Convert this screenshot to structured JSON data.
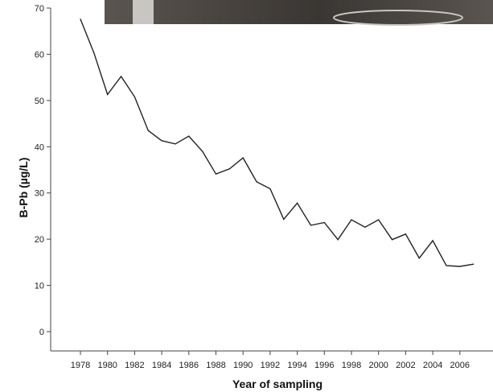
{
  "colors": {
    "line": "#222222",
    "axis": "#444444",
    "photo_dark": "#3a3633",
    "photo_mid": "#5a5550",
    "photo_light": "#c8c6c2"
  },
  "chart_data": {
    "type": "line",
    "xlabel": "Year of sampling",
    "ylabel": "B-Pb (µg/L)",
    "ylim": [
      0,
      70
    ],
    "xlim": [
      1977,
      2008
    ],
    "grid": false,
    "x_ticks": [
      1978,
      1980,
      1982,
      1984,
      1986,
      1988,
      1990,
      1992,
      1994,
      1996,
      1998,
      2000,
      2002,
      2004,
      2006
    ],
    "x_tick_labels": [
      "1978",
      "1980",
      "1982",
      "1984",
      "1986",
      "1988",
      "1990",
      "1992",
      "1994",
      "1996",
      "1998",
      "2000",
      "2002",
      "2004",
      "2006"
    ],
    "y_ticks": [
      0,
      10,
      20,
      30,
      40,
      50,
      60,
      70
    ],
    "y_tick_labels": [
      "0",
      "10",
      "20",
      "30",
      "40",
      "50",
      "60",
      "70"
    ],
    "series": [
      {
        "x": [
          1978,
          1979,
          1980,
          1981,
          1982,
          1983,
          1984,
          1985,
          1986,
          1987,
          1988,
          1989,
          1990,
          1991,
          1992,
          1993,
          1994,
          1995,
          1996,
          1997,
          1998,
          1999,
          2000,
          2001,
          2002,
          2003,
          2004,
          2005,
          2006,
          2007
        ],
        "values": [
          67.6,
          60.3,
          51.3,
          55.2,
          50.8,
          43.5,
          41.3,
          40.6,
          42.3,
          39.0,
          34.1,
          35.2,
          37.6,
          32.4,
          30.9,
          24.3,
          27.8,
          23.0,
          23.6,
          19.9,
          24.2,
          22.6,
          24.2,
          19.9,
          21.1,
          15.9,
          19.7,
          14.3,
          14.1,
          14.6
        ]
      }
    ]
  }
}
